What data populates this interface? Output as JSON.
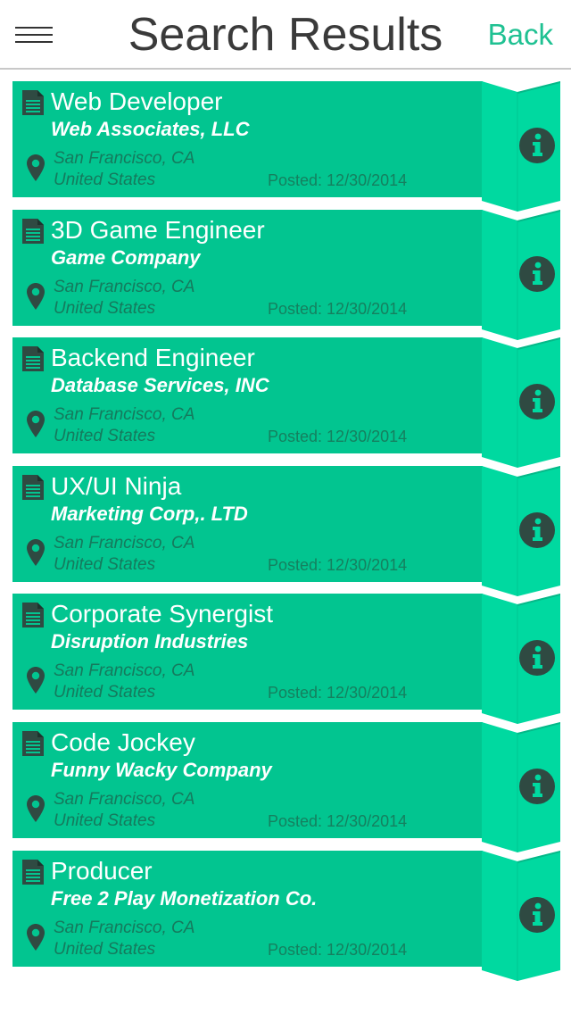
{
  "nav": {
    "title": "Search Results",
    "back_label": "Back"
  },
  "colors": {
    "accent": "#1fc192",
    "card": "#02c590",
    "ribbon": "#00d9a0",
    "icon_dark": "#2f4a42"
  },
  "icons": {
    "menu": "hamburger-menu-icon",
    "document": "document-icon",
    "location": "map-pin-icon",
    "info": "info-icon"
  },
  "results": [
    {
      "title": "Web Developer",
      "company": "Web Associates, LLC",
      "city": "San Francisco, CA",
      "country": "United States",
      "posted": "Posted: 12/30/2014"
    },
    {
      "title": "3D Game Engineer",
      "company": "Game Company",
      "city": "San Francisco, CA",
      "country": "United States",
      "posted": "Posted: 12/30/2014"
    },
    {
      "title": "Backend Engineer",
      "company": "Database Services, INC",
      "city": "San Francisco, CA",
      "country": "United States",
      "posted": "Posted: 12/30/2014"
    },
    {
      "title": "UX/UI Ninja",
      "company": "Marketing Corp,. LTD",
      "city": "San Francisco, CA",
      "country": "United States",
      "posted": "Posted: 12/30/2014"
    },
    {
      "title": "Corporate Synergist",
      "company": "Disruption Industries",
      "city": "San Francisco, CA",
      "country": "United States",
      "posted": "Posted: 12/30/2014"
    },
    {
      "title": "Code Jockey",
      "company": "Funny Wacky Company",
      "city": "San Francisco, CA",
      "country": "United States",
      "posted": "Posted: 12/30/2014"
    },
    {
      "title": "Producer",
      "company": "Free 2 Play Monetization Co.",
      "city": "San Francisco, CA",
      "country": "United States",
      "posted": "Posted: 12/30/2014"
    }
  ]
}
